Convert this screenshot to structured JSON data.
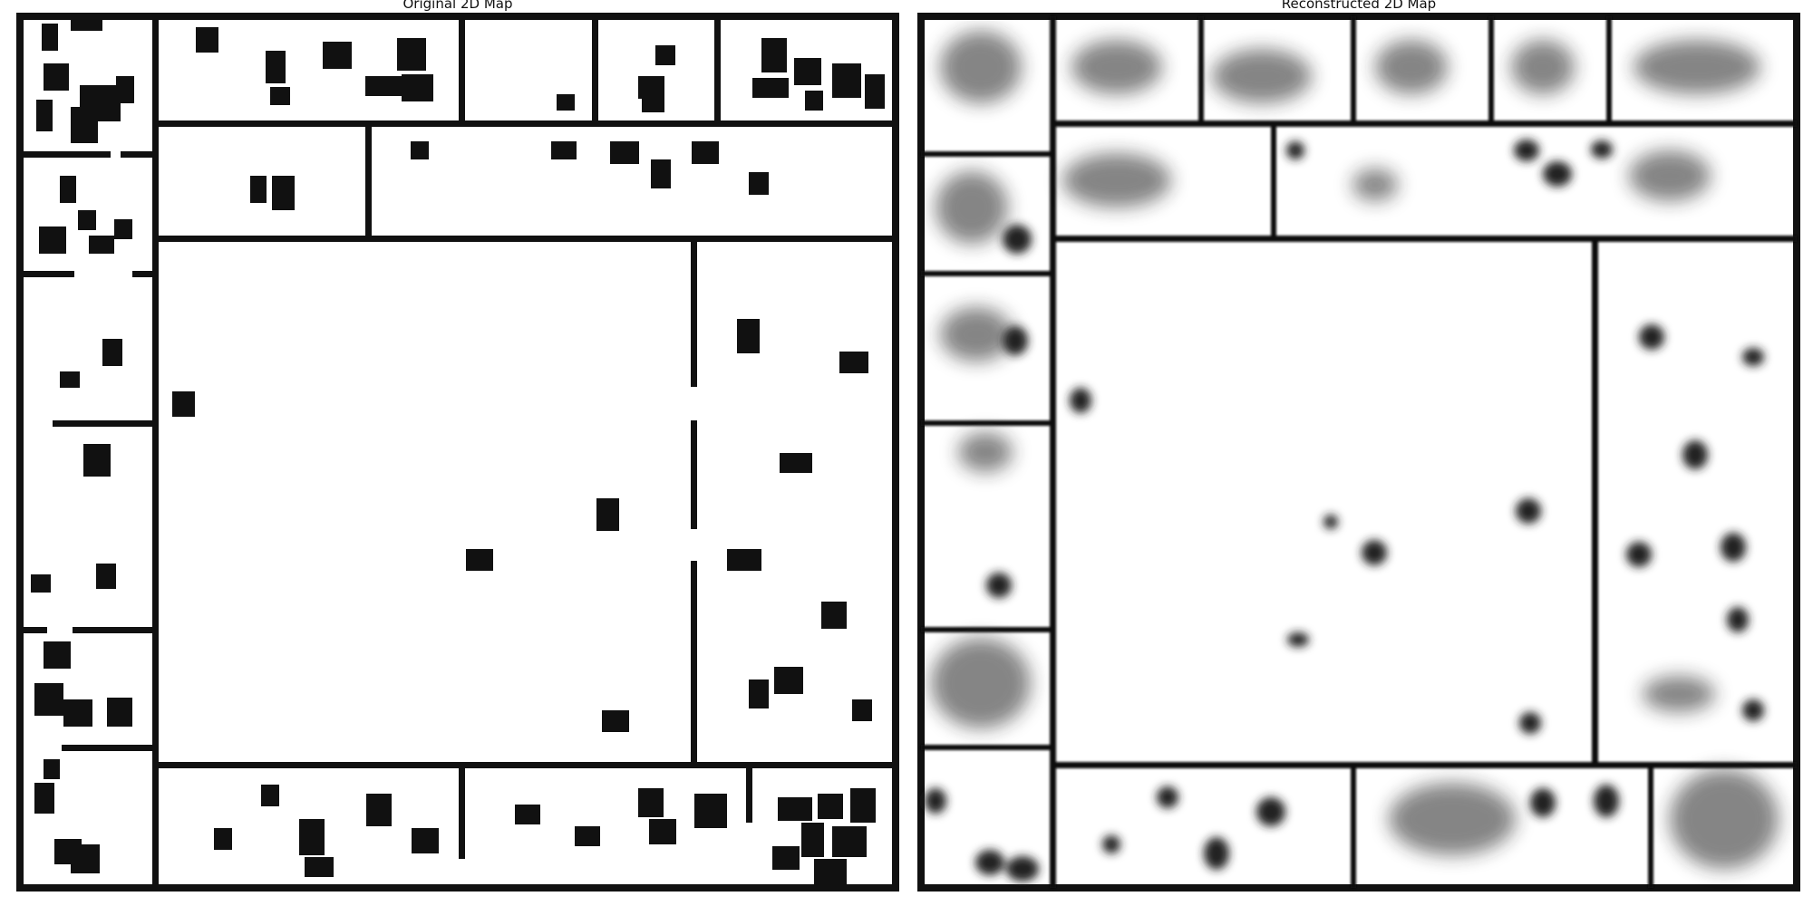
{
  "panels": {
    "left": {
      "title": "Original 2D Map"
    },
    "right": {
      "title": "Reconstructed 2D Map"
    }
  },
  "colors": {
    "background": "#ffffff",
    "walls": "#111111",
    "obstacles": "#111111",
    "reconstruction_blur": "#333333"
  }
}
